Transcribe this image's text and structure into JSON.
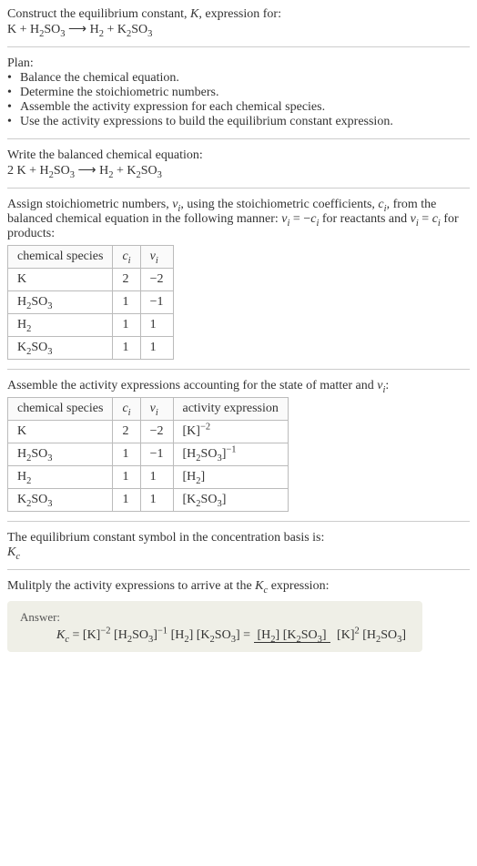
{
  "intro": {
    "line1": "Construct the equilibrium constant, <i>K</i>, expression for:",
    "eq": "K + H<sub>2</sub>SO<sub>3</sub> ⟶ H<sub>2</sub> + K<sub>2</sub>SO<sub>3</sub>"
  },
  "plan": {
    "heading": "Plan:",
    "bullets": [
      "Balance the chemical equation.",
      "Determine the stoichiometric numbers.",
      "Assemble the activity expression for each chemical species.",
      "Use the activity expressions to build the equilibrium constant expression."
    ]
  },
  "balanced": {
    "heading": "Write the balanced chemical equation:",
    "eq": "2 K + H<sub>2</sub>SO<sub>3</sub> ⟶ H<sub>2</sub> + K<sub>2</sub>SO<sub>3</sub>"
  },
  "stoich": {
    "heading": "Assign stoichiometric numbers, <i>ν<sub>i</sub></i>, using the stoichiometric coefficients, <i>c<sub>i</sub></i>, from the balanced chemical equation in the following manner: <i>ν<sub>i</sub></i> = −<i>c<sub>i</sub></i> for reactants and <i>ν<sub>i</sub></i> = <i>c<sub>i</sub></i> for products:",
    "cols": [
      "chemical species",
      "<i>c<sub>i</sub></i>",
      "<i>ν<sub>i</sub></i>"
    ],
    "rows": [
      [
        "K",
        "2",
        "−2"
      ],
      [
        "H<sub>2</sub>SO<sub>3</sub>",
        "1",
        "−1"
      ],
      [
        "H<sub>2</sub>",
        "1",
        "1"
      ],
      [
        "K<sub>2</sub>SO<sub>3</sub>",
        "1",
        "1"
      ]
    ]
  },
  "activity": {
    "heading": "Assemble the activity expressions accounting for the state of matter and <i>ν<sub>i</sub></i>:",
    "cols": [
      "chemical species",
      "<i>c<sub>i</sub></i>",
      "<i>ν<sub>i</sub></i>",
      "activity expression"
    ],
    "rows": [
      [
        "K",
        "2",
        "−2",
        "[K]<sup>−2</sup>"
      ],
      [
        "H<sub>2</sub>SO<sub>3</sub>",
        "1",
        "−1",
        "[H<sub>2</sub>SO<sub>3</sub>]<sup>−1</sup>"
      ],
      [
        "H<sub>2</sub>",
        "1",
        "1",
        "[H<sub>2</sub>]"
      ],
      [
        "K<sub>2</sub>SO<sub>3</sub>",
        "1",
        "1",
        "[K<sub>2</sub>SO<sub>3</sub>]"
      ]
    ]
  },
  "symbol": {
    "line1": "The equilibrium constant symbol in the concentration basis is:",
    "line2": "<i>K<sub>c</sub></i>"
  },
  "mult": {
    "heading": "Mulitply the activity expressions to arrive at the <i>K<sub>c</sub></i> expression:"
  },
  "answer": {
    "label": "Answer:",
    "lhs": "<i>K<sub>c</sub></i> = [K]<sup>−2</sup> [H<sub>2</sub>SO<sub>3</sub>]<sup>−1</sup> [H<sub>2</sub>] [K<sub>2</sub>SO<sub>3</sub>] = ",
    "num": "[H<sub>2</sub>] [K<sub>2</sub>SO<sub>3</sub>]",
    "den": "[K]<sup>2</sup> [H<sub>2</sub>SO<sub>3</sub>]"
  },
  "colors": {
    "border": "#ccc",
    "table_border": "#bbb",
    "answer_bg": "#efefe7",
    "text": "#333"
  }
}
